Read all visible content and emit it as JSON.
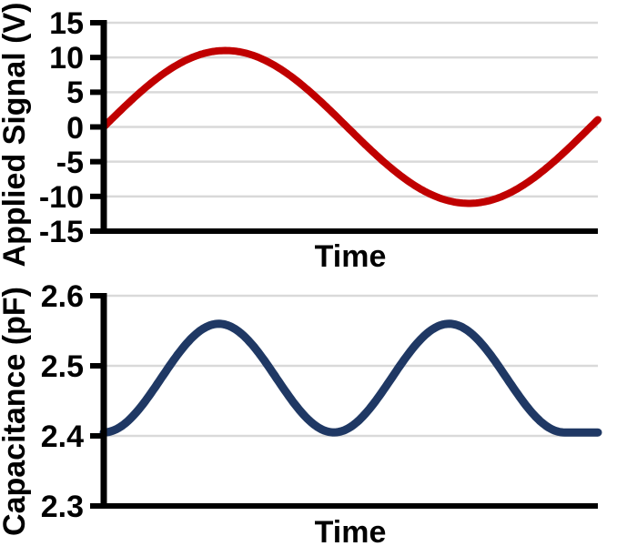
{
  "figure": {
    "background_color": "#FFFFFF",
    "axis_color": "#000000",
    "gridline_color": "#D9D9D9"
  },
  "chart_data": [
    {
      "type": "line",
      "title": "",
      "xlabel": "Time",
      "ylabel": "Applied Signal (V)",
      "xlim": [
        0,
        1
      ],
      "ylim": [
        -15,
        15
      ],
      "xticks": [],
      "yticks": [
        {
          "value": 15,
          "label": "15"
        },
        {
          "value": 10,
          "label": "10"
        },
        {
          "value": 5,
          "label": "5"
        },
        {
          "value": 0,
          "label": "0"
        },
        {
          "value": -5,
          "label": "-5"
        },
        {
          "value": -10,
          "label": "-10"
        },
        {
          "value": -15,
          "label": "-15"
        }
      ],
      "grid": "horizontal",
      "legend": "none",
      "series": [
        {
          "name": "Applied Signal",
          "color": "#C00000",
          "line_width": 8,
          "waveform": "sine",
          "offset": 0,
          "amplitude": 11,
          "period": 0.985,
          "phase": 0,
          "key_points": [
            [
              0,
              0
            ],
            [
              0.246,
              11
            ],
            [
              0.4925,
              0
            ],
            [
              0.739,
              -11
            ],
            [
              0.985,
              0
            ],
            [
              1,
              1
            ]
          ]
        }
      ]
    },
    {
      "type": "line",
      "title": "",
      "xlabel": "Time",
      "ylabel": "Capacitance (pF)",
      "xlim": [
        0,
        1
      ],
      "ylim": [
        2.3,
        2.6
      ],
      "xticks": [],
      "yticks": [
        {
          "value": 2.6,
          "label": "2.6"
        },
        {
          "value": 2.5,
          "label": "2.5"
        },
        {
          "value": 2.4,
          "label": "2.4"
        },
        {
          "value": 2.3,
          "label": "2.3"
        }
      ],
      "grid": "horizontal",
      "legend": "none",
      "series": [
        {
          "name": "Capacitance",
          "color": "#1F3864",
          "line_width": 9,
          "waveform": "sine_squared",
          "offset": 2.405,
          "amplitude": 0.155,
          "period": 0.466,
          "flat_after": 0.932,
          "key_points": [
            [
              0,
              2.405
            ],
            [
              0.233,
              2.56
            ],
            [
              0.466,
              2.405
            ],
            [
              0.699,
              2.56
            ],
            [
              0.932,
              2.405
            ],
            [
              1,
              2.405
            ]
          ]
        }
      ]
    }
  ]
}
